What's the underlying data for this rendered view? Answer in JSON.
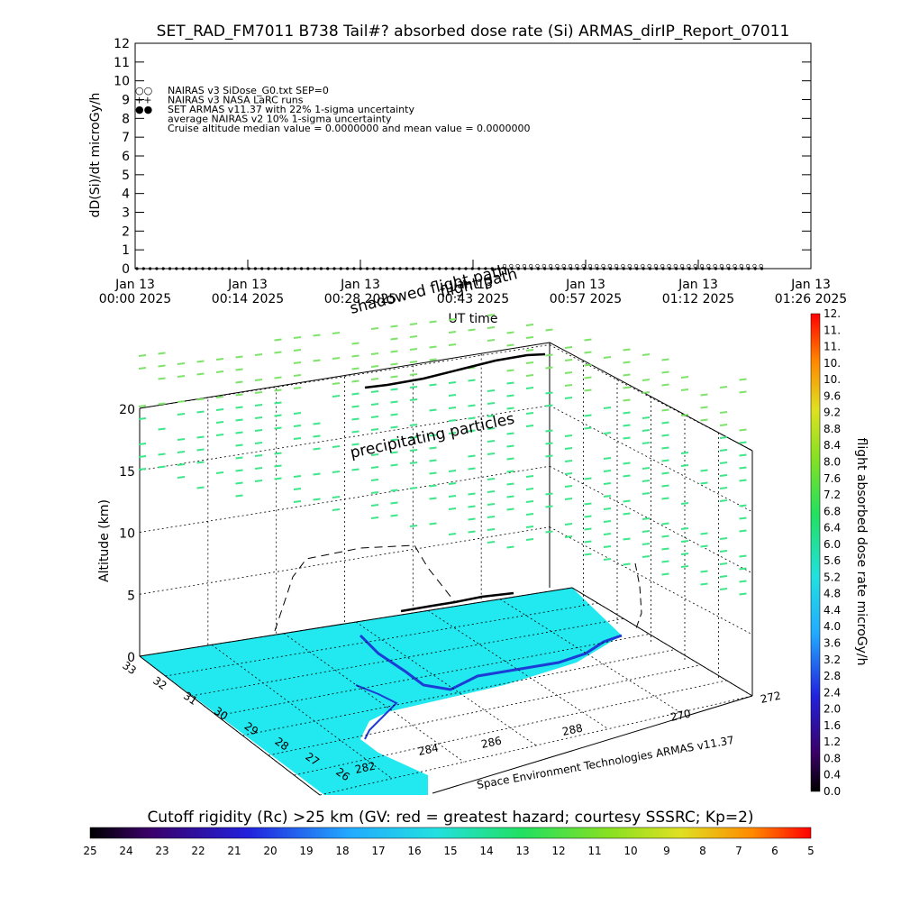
{
  "chart_data": [
    {
      "type": "line",
      "title": "SET_RAD_FM7011  B738 Tail#? absorbed dose rate (Si) ARMAS_dirIP_Report_07011",
      "xlabel": "UT time",
      "ylabel": "dD(Si)/dt microGy/h",
      "ylim": [
        0,
        12
      ],
      "yticks": [
        "0",
        "1",
        "2",
        "3",
        "4",
        "5",
        "6",
        "7",
        "8",
        "9",
        "10",
        "11",
        "12"
      ],
      "xticks": [
        {
          "l1": "Jan 13",
          "l2": "00:00 2025"
        },
        {
          "l1": "Jan 13",
          "l2": "00:14 2025"
        },
        {
          "l1": "Jan 13",
          "l2": "00:28 2025"
        },
        {
          "l1": "Jan 13",
          "l2": "00:43 2025"
        },
        {
          "l1": "Jan 13",
          "l2": "00:57 2025"
        },
        {
          "l1": "Jan 13",
          "l2": "01:12 2025"
        },
        {
          "l1": "Jan 13",
          "l2": "01:26 2025"
        }
      ],
      "legend": [
        "NAIRAS v3 SiDose_G0.txt SEP=0",
        "NAIRAS v3 NASA LaRC runs",
        "SET ARMAS v11.37 with 22% 1-sigma uncertainty",
        "average NAIRAS v2 10% 1-sigma uncertainty",
        "Cruise altitude median value = 0.0000000 and mean value = 0.0000000"
      ],
      "series": [
        {
          "name": "SET ARMAS v11.37 with 22% 1-sigma uncertainty",
          "values_range": [
            0,
            0
          ]
        }
      ]
    },
    {
      "type": "scatter",
      "zlabel": "Altitude (km)",
      "zticks": [
        "0",
        "5",
        "10",
        "15",
        "20"
      ],
      "lat_ticks": [
        "33",
        "32",
        "31",
        "30",
        "29",
        "28",
        "27",
        "26"
      ],
      "lon_ticks": [
        "282",
        "284",
        "286",
        "288",
        "270",
        "272"
      ],
      "annotations": [
        "flight path",
        "shadowed flight path",
        "precipitating particles"
      ],
      "credit": "Space Environment Technologies ARMAS v11.37",
      "colorbar_label": "flight absorbed dose rate microGy/h",
      "colorbar_ticks": [
        "0.0",
        "0.4",
        "0.8",
        "1.2",
        "1.6",
        "2.0",
        "2.4",
        "2.8",
        "3.2",
        "3.6",
        "4.0",
        "4.4",
        "4.8",
        "5.2",
        "5.6",
        "6.0",
        "6.4",
        "6.8",
        "7.2",
        "7.6",
        "8.0",
        "8.4",
        "8.8",
        "9.2",
        "9.6",
        "10.",
        "10.",
        "11.",
        "11.",
        "12."
      ]
    },
    {
      "type": "heatmap",
      "title": "Cutoff rigidity (Rc) >25 km (GV: red = greatest hazard; courtesy SSSRC; Kp=2)",
      "ticks": [
        "25",
        "24",
        "23",
        "22",
        "21",
        "20",
        "19",
        "18",
        "17",
        "16",
        "15",
        "14",
        "13",
        "12",
        "11",
        "10",
        "9",
        "8",
        "7",
        "6",
        "5"
      ]
    }
  ],
  "colors": {
    "land": "#22e8f0",
    "particles": "#3ee68a",
    "particles_light": "#7ee36a",
    "coast": "#1c3cd6"
  }
}
